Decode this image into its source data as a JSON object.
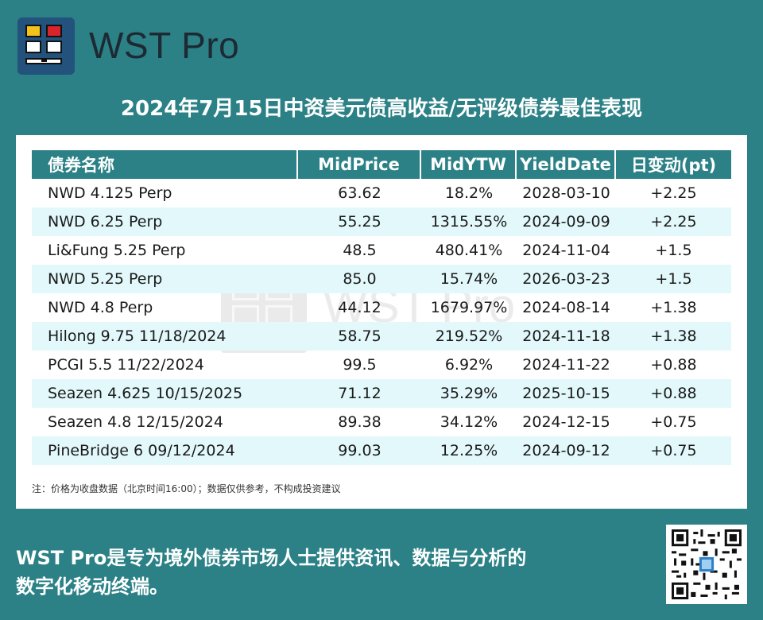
{
  "brand": {
    "name": "WST Pro"
  },
  "title": "2024年7月15日中资美元债高收益/无评级债券最佳表现",
  "table": {
    "headers": [
      "债券名称",
      "MidPrice",
      "MidYTW",
      "YieldDate",
      "日变动(pt)"
    ],
    "rows": [
      [
        "NWD 4.125 Perp",
        "63.62",
        "18.2%",
        "2028-03-10",
        "+2.25"
      ],
      [
        "NWD 6.25 Perp",
        "55.25",
        "1315.55%",
        "2024-09-09",
        "+2.25"
      ],
      [
        "Li&Fung 5.25 Perp",
        "48.5",
        "480.41%",
        "2024-11-04",
        "+1.5"
      ],
      [
        "NWD 5.25 Perp",
        "85.0",
        "15.74%",
        "2026-03-23",
        "+1.5"
      ],
      [
        "NWD 4.8 Perp",
        "44.12",
        "1679.97%",
        "2024-08-14",
        "+1.38"
      ],
      [
        "Hilong 9.75 11/18/2024",
        "58.75",
        "219.52%",
        "2024-11-18",
        "+1.38"
      ],
      [
        "PCGI 5.5 11/22/2024",
        "99.5",
        "6.92%",
        "2024-11-22",
        "+0.88"
      ],
      [
        "Seazen 4.625 10/15/2025",
        "71.12",
        "35.29%",
        "2025-10-15",
        "+0.88"
      ],
      [
        "Seazen 4.8 12/15/2024",
        "89.38",
        "34.12%",
        "2024-12-15",
        "+0.75"
      ],
      [
        "PineBridge 6 09/12/2024",
        "99.03",
        "12.25%",
        "2024-09-12",
        "+0.75"
      ]
    ]
  },
  "watermark": "WST Pro",
  "note": "注：价格为收盘数据（北京时间16:00）；数据仅供参考，不构成投资建议",
  "footer": {
    "line1": "WST Pro是专为境外债券市场人士提供资讯、数据与分析的",
    "line2": "数字化移动终端。"
  },
  "colors": {
    "background": "#2b8186",
    "header": "#2b8186",
    "stripe": "#e2f8fb",
    "logo": "#23527c"
  }
}
